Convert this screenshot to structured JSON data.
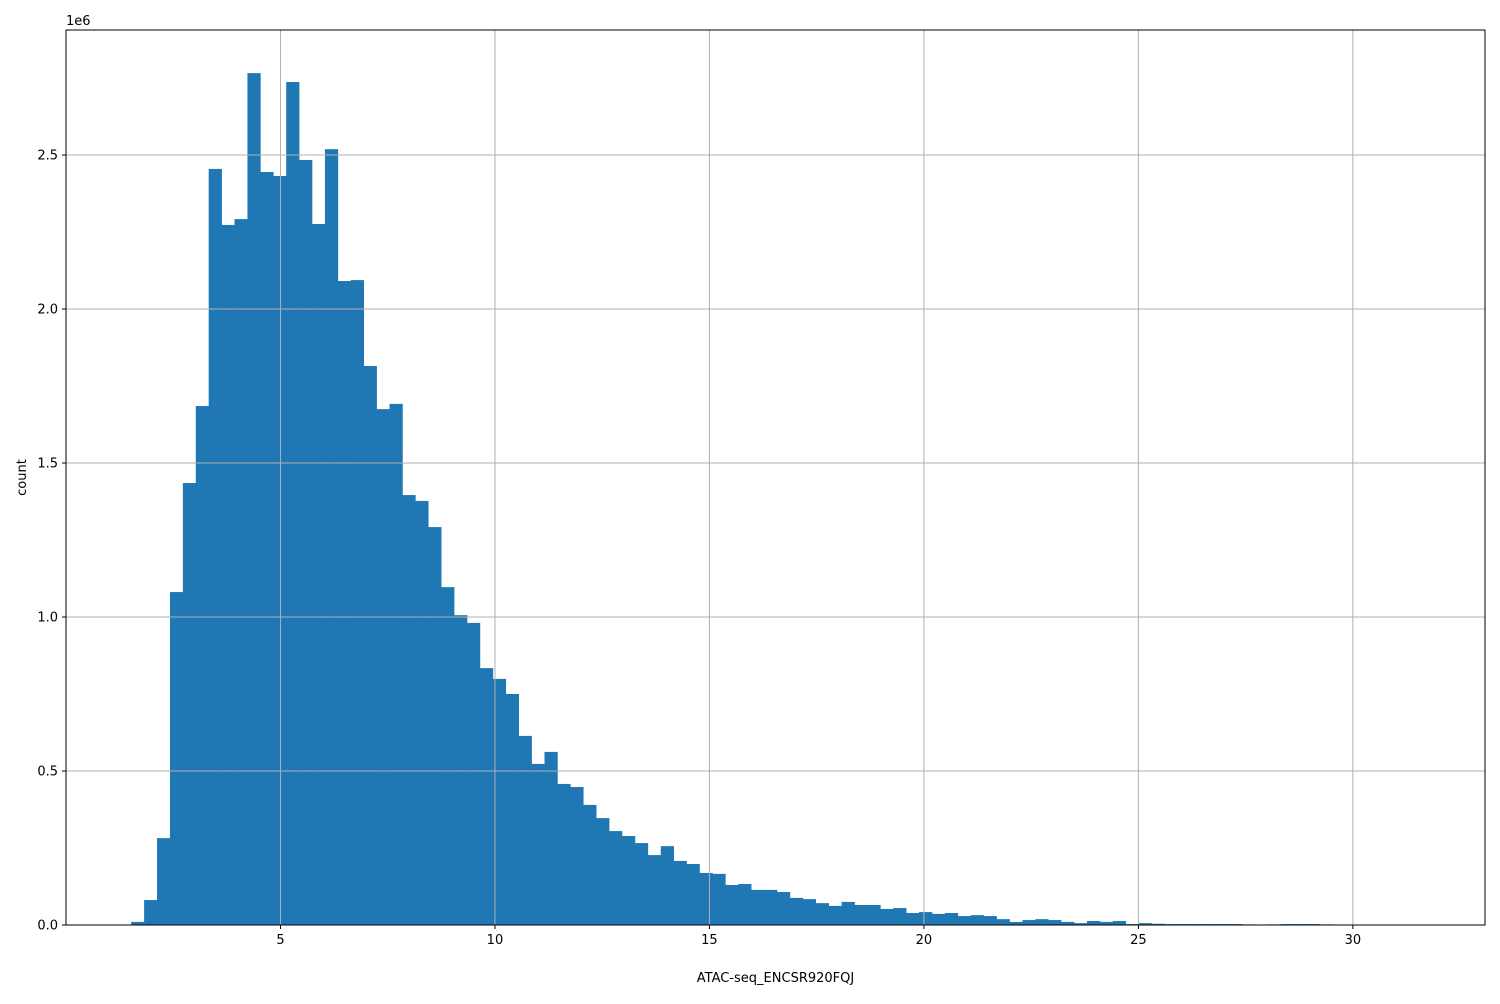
{
  "chart_data": {
    "type": "bar",
    "subtype": "histogram",
    "title": "",
    "xlabel": "ATAC-seq_ENCSR920FQJ",
    "ylabel": "count",
    "y_offset_label": "1e6",
    "xlim": [
      0.0,
      33.08
    ],
    "ylim": [
      0,
      2906000
    ],
    "grid": true,
    "bar_color": "#1f77b4",
    "bins": {
      "start": 1.52,
      "width": 0.3011,
      "count": 100
    },
    "xticks": [
      5,
      10,
      15,
      20,
      25,
      30
    ],
    "xtick_labels": [
      "5",
      "10",
      "15",
      "20",
      "25",
      "30"
    ],
    "yticks": [
      0,
      500000,
      1000000,
      1500000,
      2000000,
      2500000
    ],
    "ytick_labels": [
      "0.0",
      "0.5",
      "1.0",
      "1.5",
      "2.0",
      "2.5"
    ],
    "values": [
      10000,
      81000,
      282000,
      1081000,
      1435000,
      1685000,
      2455000,
      2273000,
      2292000,
      2766000,
      2445000,
      2432000,
      2737000,
      2484000,
      2276000,
      2519000,
      2091000,
      2094000,
      1815000,
      1675000,
      1692000,
      1396000,
      1377000,
      1292000,
      1097000,
      1006000,
      981000,
      834000,
      799000,
      750000,
      614000,
      523000,
      562000,
      458000,
      448000,
      390000,
      347000,
      305000,
      289000,
      266000,
      227000,
      256000,
      208000,
      198000,
      169000,
      166000,
      130000,
      133000,
      114000,
      114000,
      107000,
      88000,
      84000,
      71000,
      62000,
      75000,
      65000,
      65000,
      52000,
      55000,
      39000,
      42000,
      36000,
      39000,
      29000,
      32000,
      29000,
      19000,
      10000,
      16000,
      19000,
      16000,
      10000,
      6000,
      13000,
      10000,
      13000,
      3000,
      6000,
      4000,
      3000,
      3000,
      3000,
      3000,
      3000,
      3000,
      2000,
      1000,
      2000,
      3000,
      3000,
      3000,
      2000,
      0,
      0,
      0,
      0,
      0,
      0,
      0
    ]
  }
}
